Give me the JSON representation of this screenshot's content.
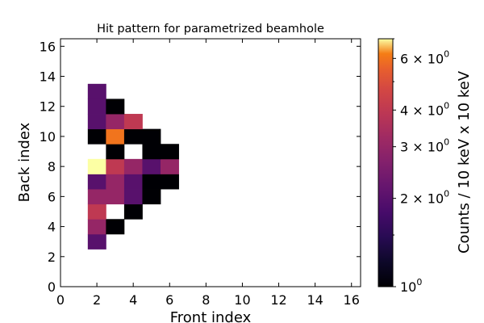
{
  "chart_data": {
    "type": "heatmap",
    "title": "Hit pattern for parametrized beamhole",
    "xlabel": "Front index",
    "ylabel": "Back index",
    "xlim": [
      0,
      16.5
    ],
    "ylim": [
      0,
      16.5
    ],
    "x_ticks": [
      "0",
      "2",
      "4",
      "6",
      "8",
      "10",
      "12",
      "14",
      "16"
    ],
    "y_ticks": [
      "0",
      "2",
      "4",
      "6",
      "8",
      "10",
      "12",
      "14",
      "16"
    ],
    "colorbar": {
      "label": "Counts / 10 keV x 10 keV",
      "scale": "log",
      "colormap": "inferno",
      "range": [
        1,
        7
      ],
      "tick_values": [
        1,
        2,
        3,
        4,
        6
      ],
      "tick_mantissas": [
        "10",
        "2 × 10",
        "3 × 10",
        "4 × 10",
        "6 × 10"
      ],
      "tick_exponent": "0"
    },
    "cells": [
      {
        "x": 2,
        "y": 3,
        "value": 2
      },
      {
        "x": 2,
        "y": 4,
        "value": 3
      },
      {
        "x": 3,
        "y": 4,
        "value": 1
      },
      {
        "x": 2,
        "y": 5,
        "value": 4
      },
      {
        "x": 4,
        "y": 5,
        "value": 1
      },
      {
        "x": 2,
        "y": 6,
        "value": 3
      },
      {
        "x": 3,
        "y": 6,
        "value": 3
      },
      {
        "x": 4,
        "y": 6,
        "value": 2
      },
      {
        "x": 5,
        "y": 6,
        "value": 1
      },
      {
        "x": 2,
        "y": 7,
        "value": 2
      },
      {
        "x": 3,
        "y": 7,
        "value": 3
      },
      {
        "x": 4,
        "y": 7,
        "value": 2
      },
      {
        "x": 5,
        "y": 7,
        "value": 1
      },
      {
        "x": 6,
        "y": 7,
        "value": 1
      },
      {
        "x": 2,
        "y": 8,
        "value": 7
      },
      {
        "x": 3,
        "y": 8,
        "value": 4
      },
      {
        "x": 4,
        "y": 8,
        "value": 3
      },
      {
        "x": 5,
        "y": 8,
        "value": 2
      },
      {
        "x": 6,
        "y": 8,
        "value": 3
      },
      {
        "x": 3,
        "y": 9,
        "value": 1
      },
      {
        "x": 5,
        "y": 9,
        "value": 1
      },
      {
        "x": 6,
        "y": 9,
        "value": 1
      },
      {
        "x": 2,
        "y": 10,
        "value": 1
      },
      {
        "x": 3,
        "y": 10,
        "value": 6
      },
      {
        "x": 4,
        "y": 10,
        "value": 1
      },
      {
        "x": 5,
        "y": 10,
        "value": 1
      },
      {
        "x": 2,
        "y": 11,
        "value": 2
      },
      {
        "x": 3,
        "y": 11,
        "value": 3
      },
      {
        "x": 4,
        "y": 11,
        "value": 4
      },
      {
        "x": 2,
        "y": 12,
        "value": 2
      },
      {
        "x": 3,
        "y": 12,
        "value": 1
      },
      {
        "x": 2,
        "y": 13,
        "value": 2
      }
    ]
  }
}
